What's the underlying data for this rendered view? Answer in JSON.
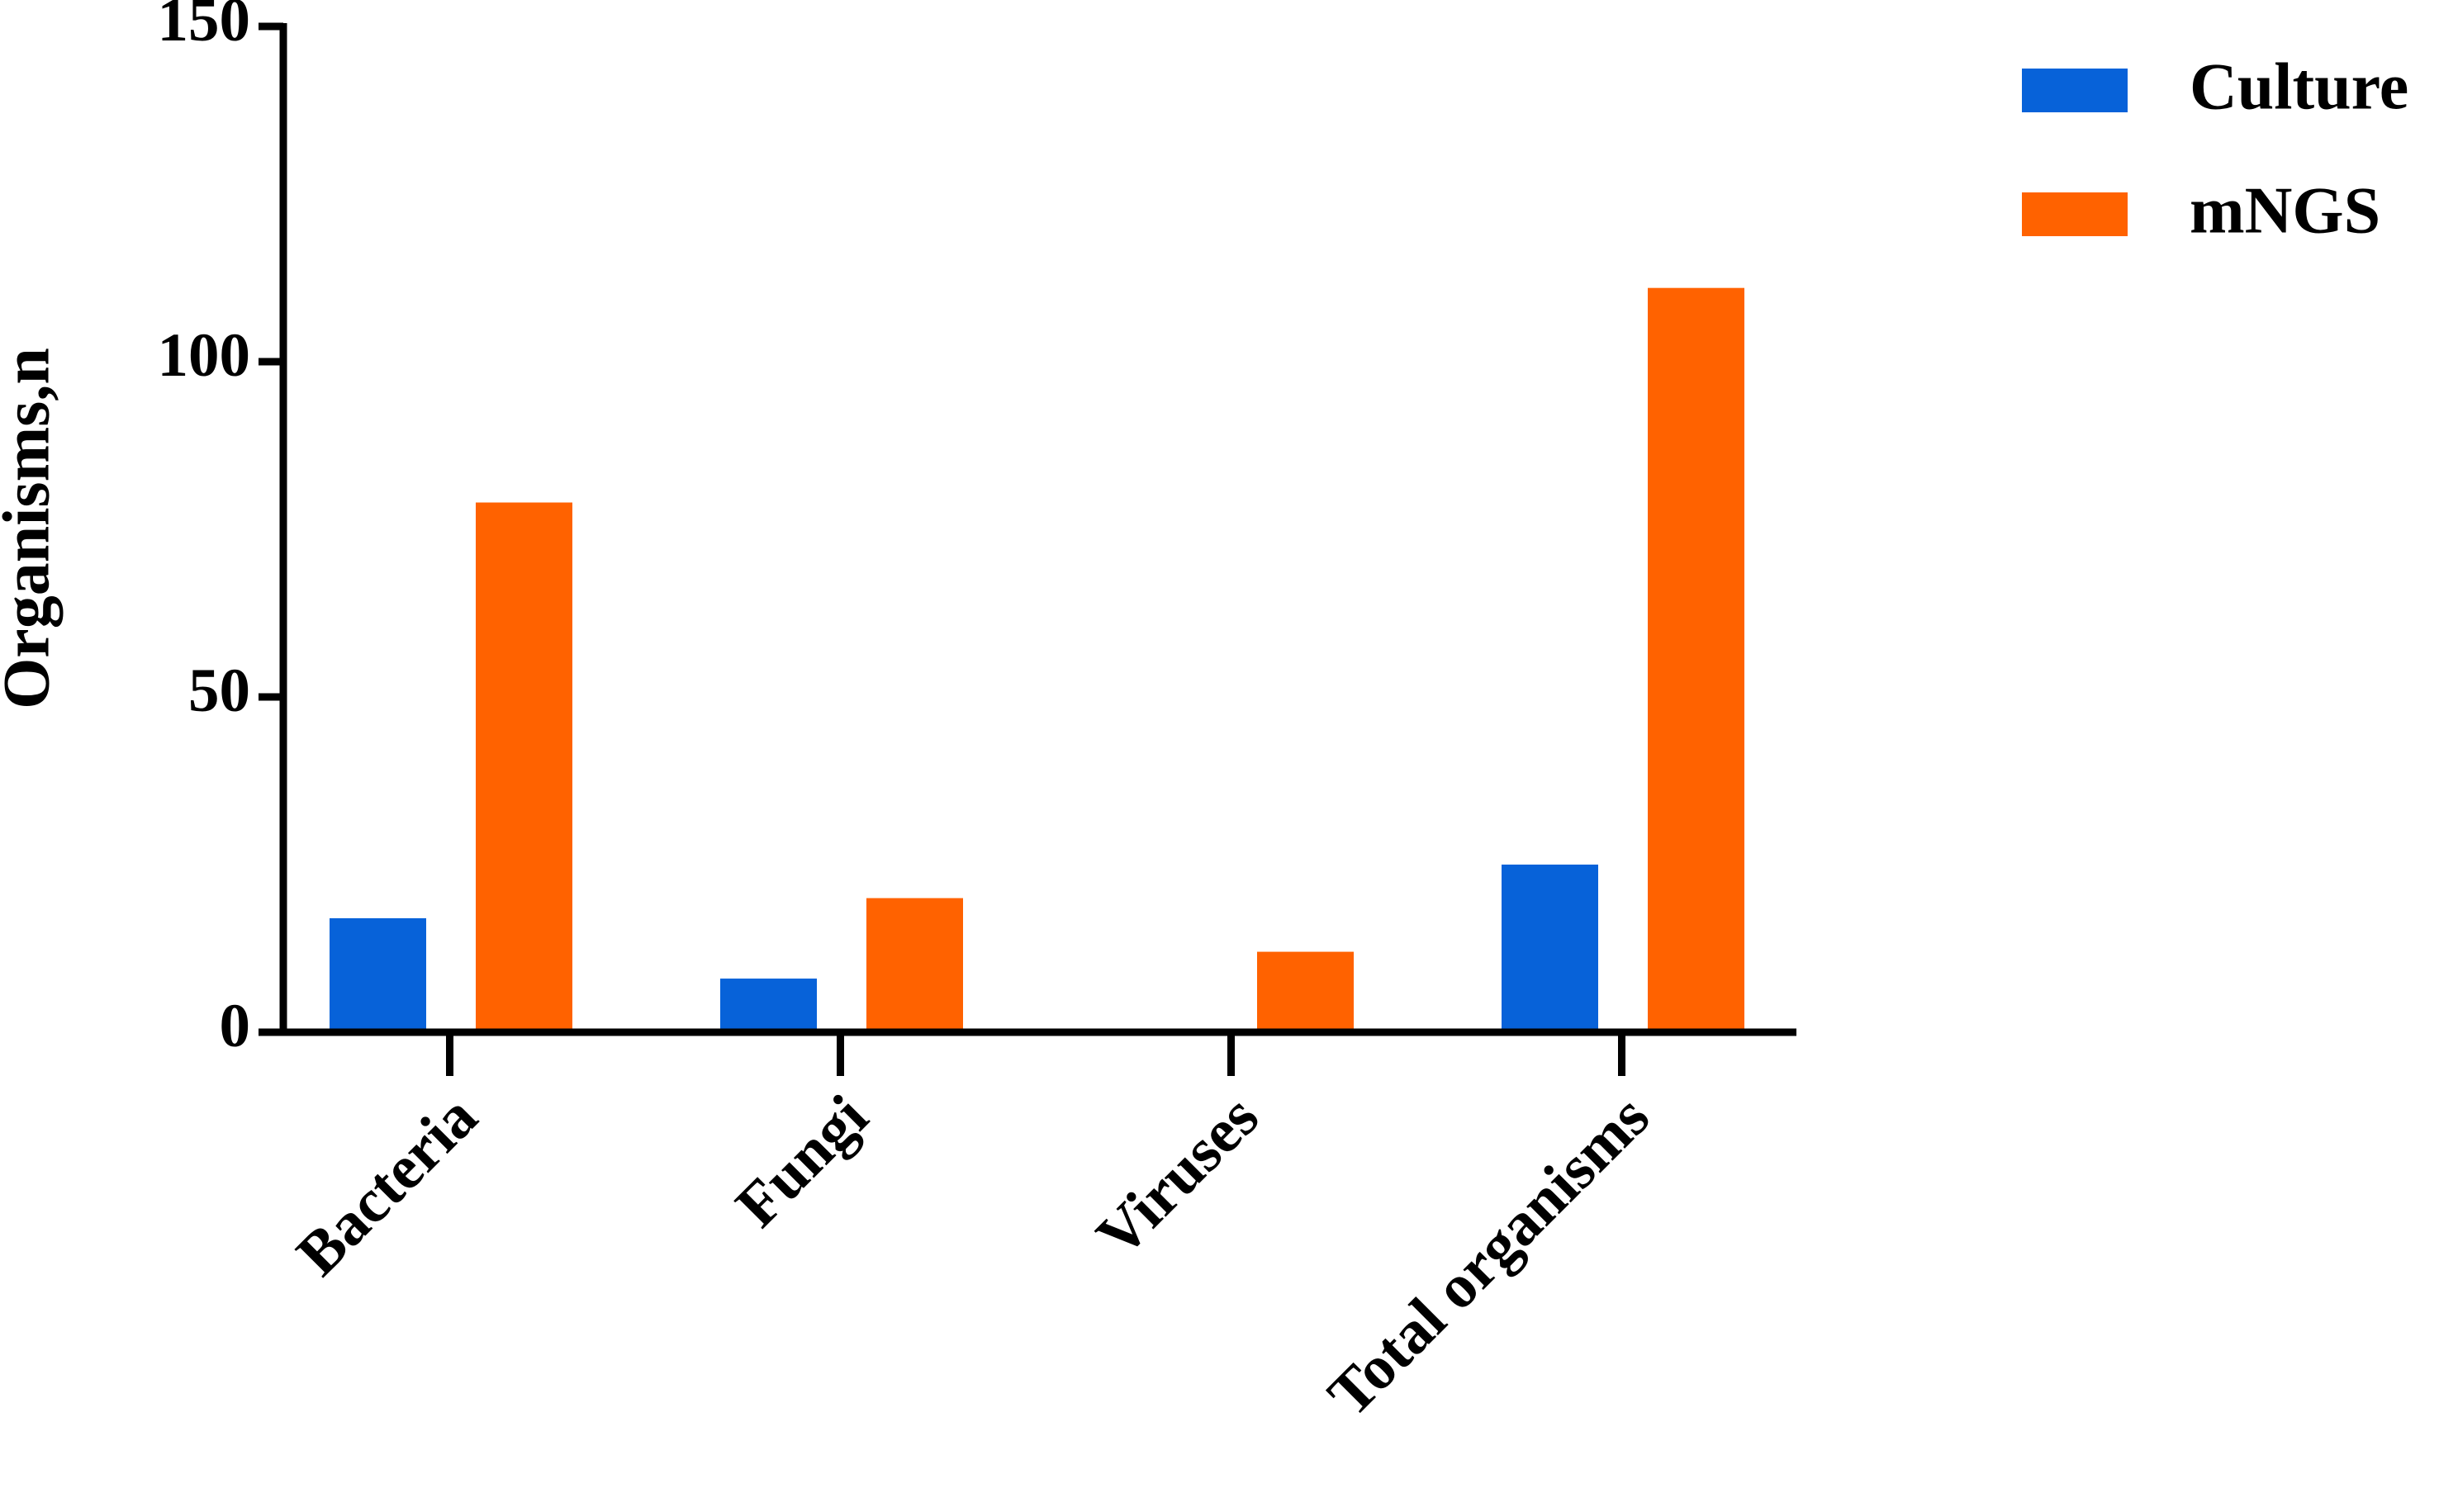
{
  "chart_data": {
    "type": "bar",
    "y_label": "Organisms,n",
    "categories": [
      "Bacteria",
      "Fungi",
      "Viruses",
      "Total organisms"
    ],
    "series": [
      {
        "name": "Culture",
        "color": "#0762d9",
        "values": [
          17,
          8,
          0,
          25
        ]
      },
      {
        "name": "mNGS",
        "color": "#ff6200",
        "values": [
          79,
          20,
          12,
          111
        ]
      }
    ],
    "ylim": [
      0,
      150
    ],
    "yticks": [
      0,
      50,
      100,
      150
    ],
    "legend": "top-right"
  }
}
